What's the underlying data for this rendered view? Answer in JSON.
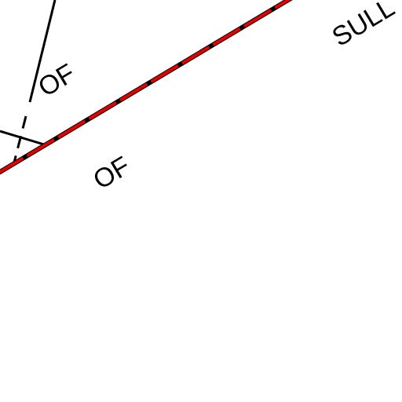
{
  "labels": [
    "OF",
    "OF",
    "SULL"
  ]
}
